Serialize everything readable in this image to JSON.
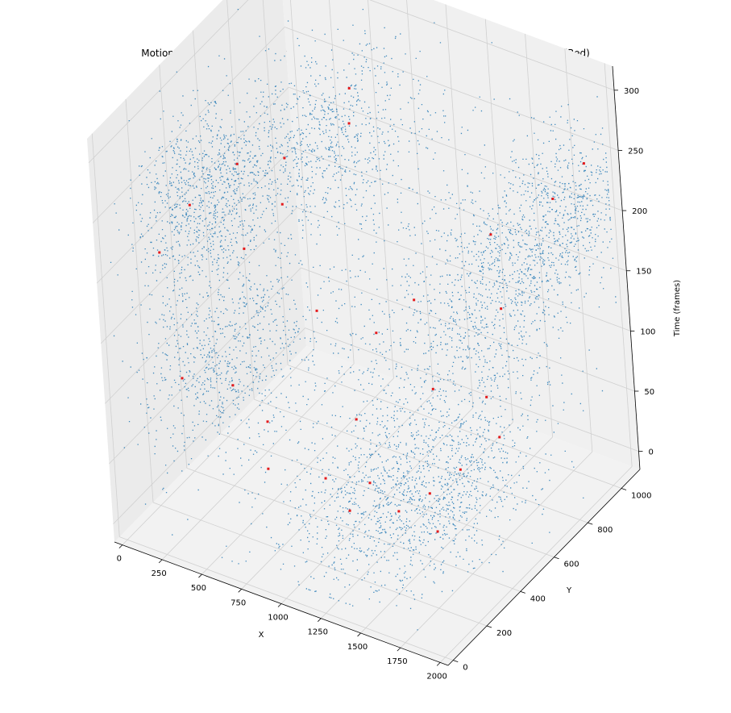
{
  "chart_data": {
    "type": "scatter",
    "title": "Motion detection over the frames of the video. Showing Individual Motion and Clusters (Red)",
    "xlabel": "X",
    "ylabel": "Y",
    "zlabel": "Time (frames)",
    "xlim": [
      -50,
      2050
    ],
    "ylim": [
      -30,
      1110
    ],
    "zlim": [
      -15,
      320
    ],
    "xticks": [
      "0",
      "250",
      "500",
      "750",
      "1000",
      "1250",
      "1500",
      "1750",
      "2000"
    ],
    "yticks": [
      "0",
      "200",
      "400",
      "600",
      "800",
      "1000"
    ],
    "zticks": [
      "0",
      "50",
      "100",
      "150",
      "200",
      "250",
      "300"
    ],
    "grid": true,
    "colors": {
      "motion": "#1f77b4",
      "clusters": "#e41a1c",
      "pane": "#f2f2f2",
      "grid": "#d0d0d0"
    },
    "series": [
      {
        "role": "motion",
        "note_count": 6000,
        "blobs": [
          {
            "x": 250,
            "y": 350,
            "z": 235,
            "sx": 170,
            "sy": 160,
            "sz": 30,
            "w": 6
          },
          {
            "x": 300,
            "y": 300,
            "z": 110,
            "sx": 170,
            "sy": 170,
            "sz": 35,
            "w": 5
          },
          {
            "x": 700,
            "y": 650,
            "z": 260,
            "sx": 220,
            "sy": 200,
            "sz": 25,
            "w": 5
          },
          {
            "x": 1200,
            "y": 350,
            "z": 20,
            "sx": 200,
            "sy": 200,
            "sz": 30,
            "w": 4
          },
          {
            "x": 1550,
            "y": 450,
            "z": 40,
            "sx": 200,
            "sy": 220,
            "sz": 25,
            "w": 5
          },
          {
            "x": 1650,
            "y": 700,
            "z": 170,
            "sx": 180,
            "sy": 200,
            "sz": 40,
            "w": 5
          },
          {
            "x": 1900,
            "y": 900,
            "z": 220,
            "sx": 150,
            "sy": 180,
            "sz": 30,
            "w": 4
          },
          {
            "x": 1000,
            "y": 550,
            "z": 80,
            "sx": 400,
            "sy": 300,
            "sz": 60,
            "w": 3
          },
          {
            "x": 1000,
            "y": 550,
            "z": 160,
            "sx": 600,
            "sy": 350,
            "sz": 90,
            "w": 3
          }
        ]
      },
      {
        "role": "clusters",
        "points": [
          [
            200,
            300,
            230
          ],
          [
            350,
            450,
            250
          ],
          [
            600,
            500,
            260
          ],
          [
            800,
            700,
            270
          ],
          [
            100,
            200,
            200
          ],
          [
            250,
            150,
            110
          ],
          [
            400,
            300,
            90
          ],
          [
            550,
            350,
            60
          ],
          [
            650,
            250,
            40
          ],
          [
            900,
            350,
            30
          ],
          [
            1100,
            300,
            20
          ],
          [
            1300,
            400,
            15
          ],
          [
            1450,
            450,
            30
          ],
          [
            1600,
            500,
            50
          ],
          [
            1750,
            600,
            70
          ],
          [
            1700,
            700,
            160
          ],
          [
            1550,
            800,
            200
          ],
          [
            1850,
            900,
            230
          ],
          [
            1950,
            1000,
            250
          ],
          [
            1000,
            600,
            120
          ],
          [
            1200,
            650,
            150
          ],
          [
            1400,
            550,
            100
          ],
          [
            800,
            450,
            150
          ],
          [
            450,
            600,
            200
          ],
          [
            300,
            500,
            170
          ],
          [
            1300,
            250,
            60
          ],
          [
            1600,
            350,
            20
          ],
          [
            700,
            800,
            280
          ],
          [
            1800,
            500,
            120
          ],
          [
            950,
            500,
            60
          ]
        ]
      }
    ]
  }
}
